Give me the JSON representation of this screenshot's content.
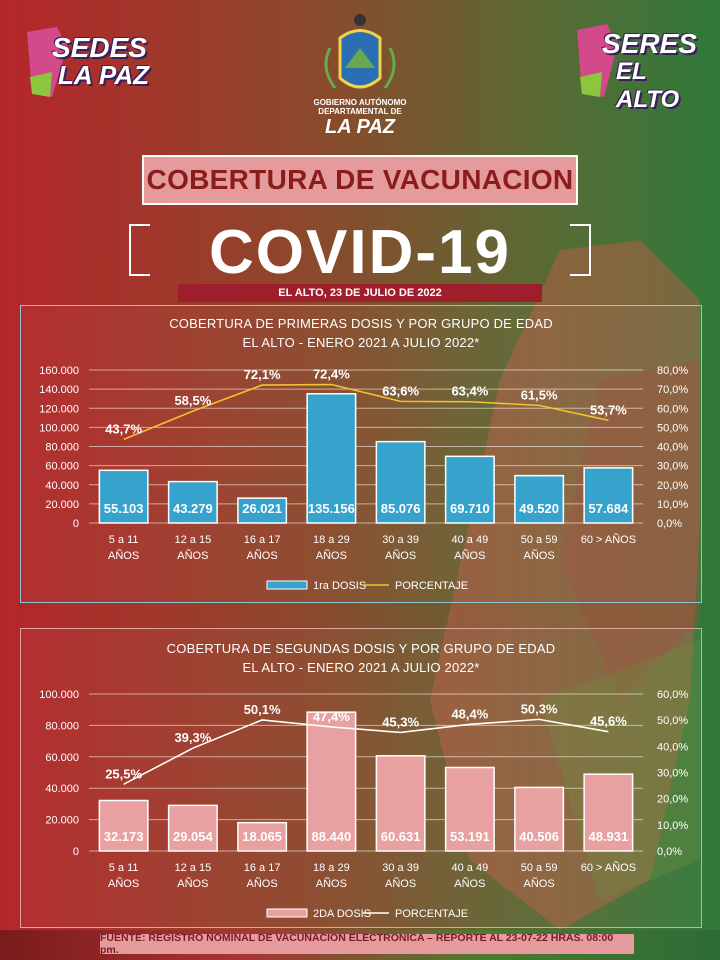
{
  "header": {
    "logo_left_line1": "SEDES",
    "logo_left_line2": "LA PAZ",
    "logo_right_line1": "SERES",
    "logo_right_line2": "EL ALTO",
    "crest_line1": "GOBIERNO AUTÓNOMO",
    "crest_line2": "DEPARTAMENTAL DE",
    "crest_line3": "LA PAZ",
    "title": "COBERTURA DE VACUNACION",
    "covid": "COVID-19",
    "date": "EL ALTO, 23 DE JULIO DE 2022"
  },
  "colors": {
    "bar1": "#35a3cc",
    "bar2": "#e8a0a0",
    "line1": "#f2c230",
    "line2": "#ffffff",
    "title_box": "#e59b9b",
    "date_bar": "#9e1f2b"
  },
  "chart_data": [
    {
      "type": "bar",
      "title": "COBERTURA DE PRIMERAS  DOSIS Y POR GRUPO DE EDAD",
      "subtitle": "EL ALTO - ENERO 2021 A JULIO 2022*",
      "categories": [
        [
          "5 a 11",
          "AÑOS"
        ],
        [
          "12 a 15",
          "AÑOS"
        ],
        [
          "16 a 17",
          "AÑOS"
        ],
        [
          "18 a 29",
          "AÑOS"
        ],
        [
          "30 a 39",
          "AÑOS"
        ],
        [
          "40 a 49",
          "AÑOS"
        ],
        [
          "50 a 59",
          "AÑOS"
        ],
        [
          "60 > AÑOS"
        ]
      ],
      "series": [
        {
          "name": "1ra DOSIS",
          "type": "bar",
          "axis": "left",
          "values": [
            55103,
            43279,
            26021,
            135156,
            85076,
            69710,
            49520,
            57684
          ],
          "labels": [
            "55.103",
            "43.279",
            "26.021",
            "135.156",
            "85.076",
            "69.710",
            "49.520",
            "57.684"
          ]
        },
        {
          "name": "PORCENTAJE",
          "type": "line",
          "axis": "right",
          "values": [
            43.7,
            58.5,
            72.1,
            72.4,
            63.6,
            63.4,
            61.5,
            53.7
          ],
          "labels": [
            "43,7%",
            "58,5%",
            "72,1%",
            "72,4%",
            "63,6%",
            "63,4%",
            "61,5%",
            "53,7%"
          ]
        }
      ],
      "ylim": [
        0,
        160000
      ],
      "y2lim": [
        0,
        80
      ],
      "yticks": [
        "0",
        "20.000",
        "40.000",
        "60.000",
        "80.000",
        "100.000",
        "120.000",
        "140.000",
        "160.000"
      ],
      "y2ticks": [
        "0,0%",
        "10,0%",
        "20,0%",
        "30,0%",
        "40,0%",
        "50,0%",
        "60,0%",
        "70,0%",
        "80,0%"
      ],
      "grid": true,
      "legend": "bottom"
    },
    {
      "type": "bar",
      "title": "COBERTURA DE SEGUNDAS  DOSIS Y POR GRUPO DE EDAD",
      "subtitle": "EL ALTO - ENERO 2021 A JULIO 2022*",
      "categories": [
        [
          "5 a 11",
          "AÑOS"
        ],
        [
          "12 a 15",
          "AÑOS"
        ],
        [
          "16 a 17",
          "AÑOS"
        ],
        [
          "18 a 29",
          "AÑOS"
        ],
        [
          "30 a 39",
          "AÑOS"
        ],
        [
          "40 a 49",
          "AÑOS"
        ],
        [
          "50 a 59",
          "AÑOS"
        ],
        [
          "60 > AÑOS"
        ]
      ],
      "series": [
        {
          "name": "2DA DOSIS",
          "type": "bar",
          "axis": "left",
          "values": [
            32173,
            29054,
            18065,
            88440,
            60631,
            53191,
            40506,
            48931
          ],
          "labels": [
            "32.173",
            "29.054",
            "18.065",
            "88.440",
            "60.631",
            "53.191",
            "40.506",
            "48.931"
          ]
        },
        {
          "name": "PORCENTAJE",
          "type": "line",
          "axis": "right",
          "values": [
            25.5,
            39.3,
            50.1,
            47.4,
            45.3,
            48.4,
            50.3,
            45.6
          ],
          "labels": [
            "25,5%",
            "39,3%",
            "50,1%",
            "47,4%",
            "45,3%",
            "48,4%",
            "50,3%",
            "45,6%"
          ]
        }
      ],
      "ylim": [
        0,
        100000
      ],
      "y2lim": [
        0,
        60
      ],
      "yticks": [
        "0",
        "20.000",
        "40.000",
        "60.000",
        "80.000",
        "100.000"
      ],
      "y2ticks": [
        "0,0%",
        "10,0%",
        "20,0%",
        "30,0%",
        "40,0%",
        "50,0%",
        "60,0%"
      ],
      "grid": true,
      "legend": "bottom"
    }
  ],
  "footer": "FUENTE: REGISTRO NOMINAL DE VACUNACION ELECTRONICA – REPORTE AL 23-07-22 HRAS. 08:00 pm."
}
